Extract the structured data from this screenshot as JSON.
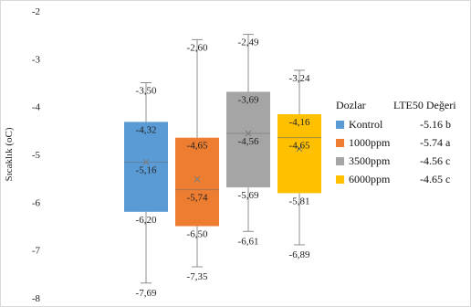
{
  "chart_data": {
    "type": "boxplot",
    "ylabel": "Sıcaklık  (oC)",
    "ylim": [
      -8,
      -2
    ],
    "yticks": [
      -2,
      -3,
      -4,
      -5,
      -6,
      -7,
      -8
    ],
    "yticks_labels": [
      "-2",
      "-3",
      "-4",
      "-5",
      "-6",
      "-7",
      "-8"
    ],
    "grid": false,
    "legend_position": "right",
    "legend_header": {
      "col1": "Dozlar",
      "col2": "LTE50 Değeri"
    },
    "series": [
      {
        "name": "Kontrol",
        "color": "#5B9BD5",
        "min": -7.69,
        "q1": -6.2,
        "median": -5.16,
        "q3": -4.32,
        "max": -3.5,
        "mean": -5.16,
        "labels": {
          "max": "-3,50",
          "q3": "-4,32",
          "median": "-5,16",
          "q1": "-6,20",
          "min": "-7,69"
        },
        "lte50": "-5.16 b"
      },
      {
        "name": "1000ppm",
        "color": "#ED7D31",
        "min": -7.35,
        "q1": -6.5,
        "median": -5.74,
        "q3": -4.65,
        "max": -2.6,
        "mean": -5.52,
        "labels": {
          "max": "-2,60",
          "q3": "-4,65",
          "median": "-5,74",
          "q1": "-6,50",
          "min": "-7,35"
        },
        "lte50": "-5.74 a"
      },
      {
        "name": "3500ppm",
        "color": "#A5A5A5",
        "min": -6.61,
        "q1": -5.69,
        "median": -4.56,
        "q3": -3.69,
        "max": -2.49,
        "mean": -4.56,
        "labels": {
          "max": "-2,49",
          "q3": "-3,69",
          "median": "-4,56",
          "q1": "-5,69",
          "min": "-6,61"
        },
        "lte50": "-4.56 c"
      },
      {
        "name": "6000ppm",
        "color": "#FFC000",
        "min": -6.89,
        "q1": -5.81,
        "median": -4.65,
        "q3": -4.16,
        "max": -3.24,
        "mean": -4.88,
        "labels": {
          "max": "-3,24",
          "q3": "-4,16",
          "median": "-4,65",
          "q1": "-5,81",
          "min": "-6,89"
        },
        "lte50": "-4.65 c"
      }
    ]
  }
}
